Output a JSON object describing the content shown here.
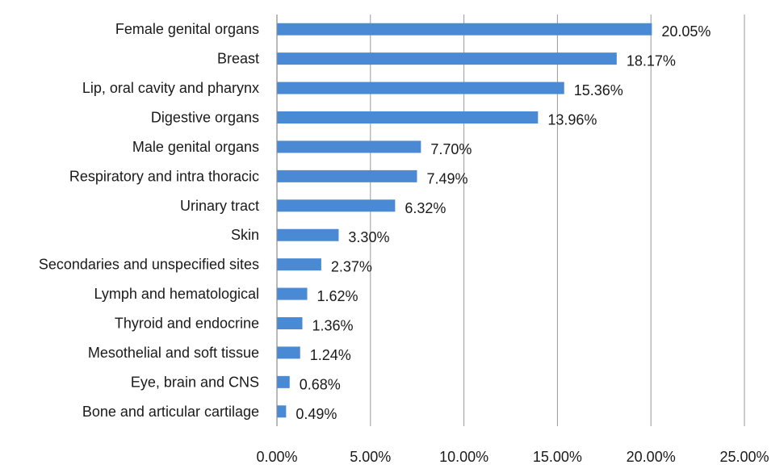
{
  "chart_data": {
    "type": "bar",
    "orientation": "horizontal",
    "categories": [
      "Female genital organs",
      "Breast",
      "Lip, oral cavity and pharynx",
      "Digestive organs",
      "Male genital organs",
      "Respiratory and intra thoracic",
      "Urinary tract",
      "Skin",
      "Secondaries and unspecified sites",
      "Lymph and hematological",
      "Thyroid and endocrine",
      "Mesothelial and soft tissue",
      "Eye, brain and CNS",
      "Bone and articular cartilage"
    ],
    "values": [
      20.05,
      18.17,
      15.36,
      13.96,
      7.7,
      7.49,
      6.32,
      3.3,
      2.37,
      1.62,
      1.36,
      1.24,
      0.68,
      0.49
    ],
    "value_labels": [
      "20.05%",
      "18.17%",
      "15.36%",
      "13.96%",
      "7.70%",
      "7.49%",
      "6.32%",
      "3.30%",
      "2.37%",
      "1.62%",
      "1.36%",
      "1.24%",
      "0.68%",
      "0.49%"
    ],
    "xticks": [
      "0.00%",
      "5.00%",
      "10.00%",
      "15.00%",
      "20.00%",
      "25.00%"
    ],
    "xlim": [
      0,
      25
    ],
    "title": "",
    "xlabel": "",
    "ylabel": "",
    "grid": "vertical",
    "legend": "none",
    "bar_color": "#4a8ad4"
  }
}
